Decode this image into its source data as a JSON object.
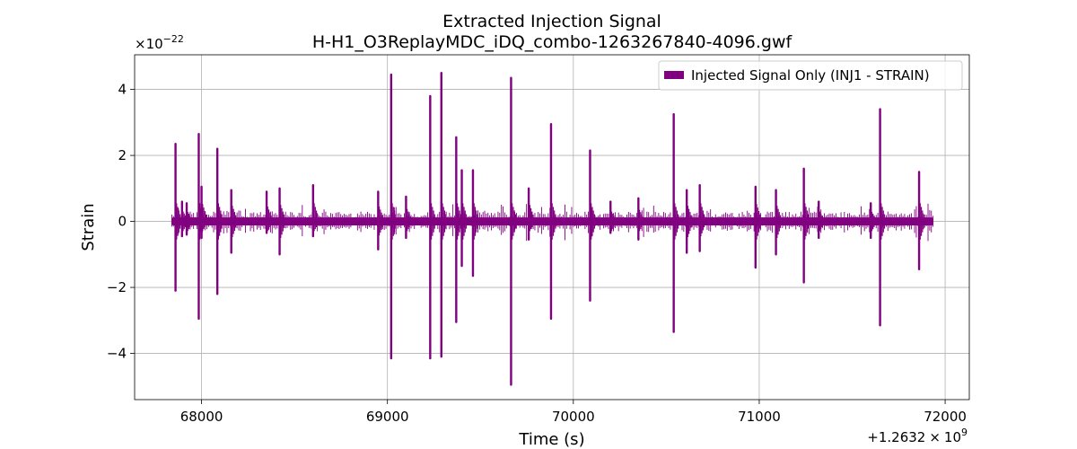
{
  "chart_data": {
    "type": "line",
    "title": "Extracted Injection Signal",
    "subtitle": "H-H1_O3ReplayMDC_iDQ_combo-1263267840-4096.gwf",
    "xlabel": "Time (s)",
    "ylabel": "Strain",
    "x_offset_label": "+1.2632",
    "x_offset_times": "×",
    "x_offset_base": "10",
    "x_offset_exp": "9",
    "y_scale_label": "×10",
    "y_scale_exp": "−22",
    "xlim": [
      67640,
      72130
    ],
    "ylim": [
      -5.4,
      5.05
    ],
    "x_ticks": [
      68000,
      69000,
      70000,
      71000,
      72000
    ],
    "x_tick_labels": [
      "68000",
      "69000",
      "70000",
      "71000",
      "72000"
    ],
    "y_ticks": [
      -4,
      -2,
      0,
      2,
      4
    ],
    "y_tick_labels": [
      "−4",
      "−2",
      "0",
      "2",
      "4"
    ],
    "grid": true,
    "legend_position": "top-right",
    "color": "#800080",
    "series": [
      {
        "name": "Injected Signal Only (INJ1 - STRAIN)",
        "baseline_range": [
          67840,
          71936
        ],
        "baseline_amplitude": 0.12,
        "noise_amplitude": 0.3,
        "spikes": [
          {
            "x": 67860,
            "ymax": 2.35,
            "ymin": -2.1
          },
          {
            "x": 67895,
            "ymax": 0.6,
            "ymin": -0.45
          },
          {
            "x": 67920,
            "ymax": 0.55,
            "ymin": -0.4
          },
          {
            "x": 67985,
            "ymax": 2.65,
            "ymin": -2.95
          },
          {
            "x": 68000,
            "ymax": 1.05,
            "ymin": -0.5
          },
          {
            "x": 68085,
            "ymax": 2.2,
            "ymin": -2.2
          },
          {
            "x": 68160,
            "ymax": 0.95,
            "ymin": -0.95
          },
          {
            "x": 68350,
            "ymax": 0.9,
            "ymin": -0.35
          },
          {
            "x": 68420,
            "ymax": 1.0,
            "ymin": -1.0
          },
          {
            "x": 68600,
            "ymax": 1.1,
            "ymin": -0.45
          },
          {
            "x": 68950,
            "ymax": 0.9,
            "ymin": -0.85
          },
          {
            "x": 69020,
            "ymax": 4.45,
            "ymin": -4.15
          },
          {
            "x": 69100,
            "ymax": 0.75,
            "ymin": -0.5
          },
          {
            "x": 69230,
            "ymax": 3.8,
            "ymin": -4.15
          },
          {
            "x": 69290,
            "ymax": 4.5,
            "ymin": -4.1
          },
          {
            "x": 69370,
            "ymax": 2.55,
            "ymin": -3.05
          },
          {
            "x": 69400,
            "ymax": 1.55,
            "ymin": -1.35
          },
          {
            "x": 69460,
            "ymax": 1.55,
            "ymin": -1.65
          },
          {
            "x": 69665,
            "ymax": 4.35,
            "ymin": -4.95
          },
          {
            "x": 69760,
            "ymax": 1.0,
            "ymin": -0.55
          },
          {
            "x": 69880,
            "ymax": 2.95,
            "ymin": -2.95
          },
          {
            "x": 70090,
            "ymax": 2.15,
            "ymin": -2.4
          },
          {
            "x": 70200,
            "ymax": 0.6,
            "ymin": -0.35
          },
          {
            "x": 70350,
            "ymax": 0.7,
            "ymin": -0.55
          },
          {
            "x": 70540,
            "ymax": 3.25,
            "ymin": -3.35
          },
          {
            "x": 70610,
            "ymax": 0.95,
            "ymin": -0.95
          },
          {
            "x": 70680,
            "ymax": 1.1,
            "ymin": -0.9
          },
          {
            "x": 70980,
            "ymax": 1.05,
            "ymin": -1.4
          },
          {
            "x": 71090,
            "ymax": 0.95,
            "ymin": -1.0
          },
          {
            "x": 71240,
            "ymax": 1.6,
            "ymin": -1.85
          },
          {
            "x": 71320,
            "ymax": 0.6,
            "ymin": -0.5
          },
          {
            "x": 71600,
            "ymax": 0.55,
            "ymin": -0.5
          },
          {
            "x": 71650,
            "ymax": 3.4,
            "ymin": -3.15
          },
          {
            "x": 71860,
            "ymax": 1.5,
            "ymin": -1.45
          }
        ]
      }
    ]
  }
}
